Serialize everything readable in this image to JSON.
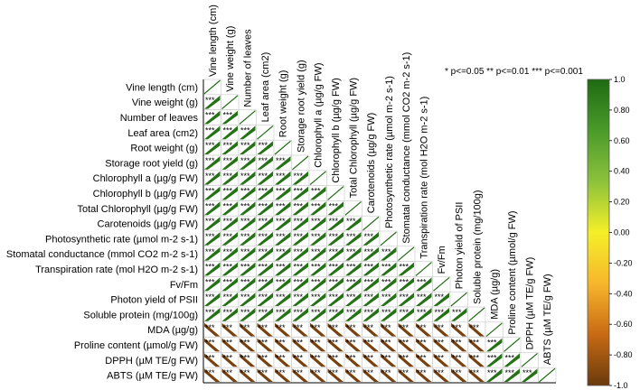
{
  "chart_data": {
    "type": "heatmap",
    "title": "",
    "variables": [
      "Vine length (cm)",
      "Vine weight (g)",
      "Number of leaves",
      "Leaf area (cm2)",
      "Root weight (g)",
      "Storage root yield (g)",
      "Chlorophyll a (µg/g FW)",
      "Chlorophyll b (µg/g FW)",
      "Total Chlorophyll (µg/g FW)",
      "Carotenoids (µg/g FW)",
      "Photosynthetic rate (µmol m-2 s-1)",
      "Stomatal conductance (mmol CO2 m-2 s-1)",
      "Transpiration rate (mol H2O m-2 s-1)",
      "Fv/Fm",
      "Photon yield of PSII",
      "Soluble protein (mg/100g)",
      "MDA (µg/g)",
      "Proline content (µmol/g FW)",
      "DPPH (µM TE/g FW)",
      "ABTS (µM TE/g FW)"
    ],
    "positive_count": 16,
    "correlation_estimate": {
      "positive_block": 0.95,
      "negative_block": -0.95
    },
    "significance_label": "***",
    "significance_note": "* p<=0.05  ** p<=0.01  *** p<=0.001",
    "colorbar": {
      "min": -1.0,
      "max": 1.0,
      "ticks": [
        "1.0",
        "0.80",
        "0.60",
        "0.40",
        "0.20",
        "0.00",
        "-0.20",
        "-0.40",
        "-0.60",
        "-0.80",
        "-1.0"
      ],
      "colors": [
        "#1f6b12",
        "#4a9a2a",
        "#8cc23c",
        "#f5ef28",
        "#f7b62c",
        "#c86a14",
        "#6a3a0c"
      ]
    }
  }
}
